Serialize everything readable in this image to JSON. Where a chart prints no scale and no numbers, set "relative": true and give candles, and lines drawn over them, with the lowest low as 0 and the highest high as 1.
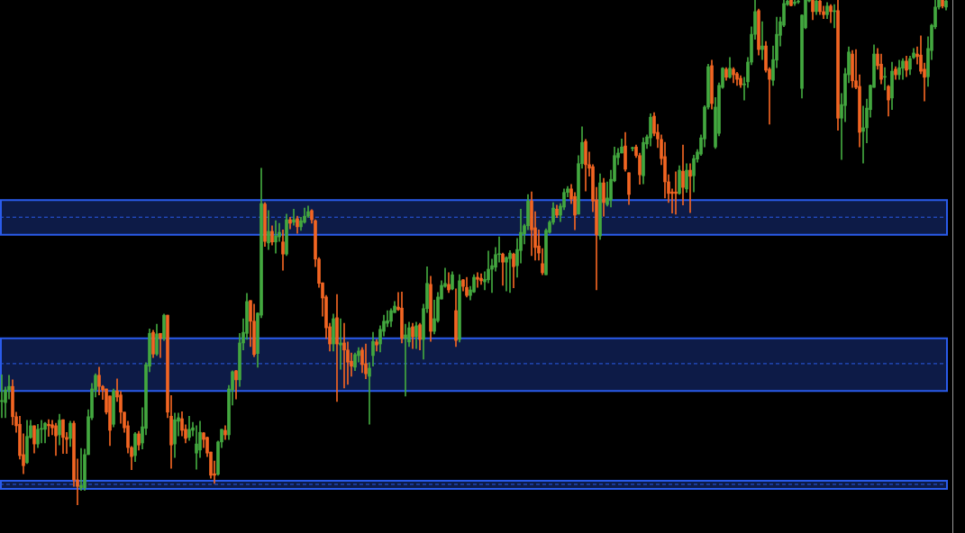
{
  "chart_data": {
    "type": "candlestick",
    "relative": true,
    "categories": [
      null,
      null,
      null,
      null,
      null,
      null,
      null,
      null,
      null,
      null,
      null,
      null,
      null,
      null,
      null,
      null,
      null,
      null,
      null,
      null,
      null,
      null,
      null,
      null,
      null,
      null,
      null,
      null,
      null,
      null,
      null,
      null,
      null,
      null,
      null,
      null,
      null,
      null,
      null,
      null,
      null,
      null,
      null,
      null,
      null,
      null,
      null,
      null,
      null,
      null,
      null,
      null,
      null,
      null,
      null,
      null,
      null,
      null,
      null,
      null,
      null,
      null,
      null,
      null,
      null,
      null,
      null,
      null,
      null,
      null,
      null,
      null,
      null,
      null,
      null,
      null,
      null,
      null,
      null,
      null,
      null,
      null,
      null,
      null,
      null,
      null,
      null,
      null,
      null,
      null,
      null,
      null,
      null,
      null,
      null,
      null,
      null,
      null,
      null,
      null,
      null,
      null,
      null,
      null,
      null,
      null,
      null,
      null,
      null,
      null,
      null,
      null,
      null,
      null,
      null,
      null,
      null,
      null,
      null,
      null,
      null,
      null,
      null,
      null,
      null,
      null,
      null,
      null,
      null,
      null,
      null,
      null,
      null,
      null,
      null,
      null,
      null,
      null,
      null,
      null,
      null,
      null,
      null,
      null,
      null,
      null,
      null,
      null,
      null,
      null,
      null,
      null,
      null,
      null,
      null,
      null,
      null,
      null,
      null,
      null,
      null,
      null,
      null,
      null,
      null,
      null,
      null,
      null,
      null,
      null,
      null,
      null,
      null,
      null,
      null,
      null,
      null,
      null,
      null,
      null,
      null,
      null,
      null,
      null,
      null,
      null,
      null,
      null,
      null,
      null,
      null,
      null,
      null,
      null,
      null,
      null,
      null,
      null,
      null,
      null,
      null,
      null,
      null,
      null,
      null,
      null,
      null,
      null,
      null,
      null,
      null,
      null,
      null,
      null,
      null,
      null,
      null,
      null,
      null,
      null,
      null,
      null,
      null,
      null,
      null,
      null,
      null,
      null,
      null,
      null,
      null,
      null,
      null,
      null,
      null,
      null,
      null,
      null,
      null,
      null,
      null,
      null,
      null,
      null,
      null,
      null,
      null,
      null,
      null,
      null,
      null,
      null,
      null,
      null,
      null,
      null,
      null,
      null,
      null,
      null,
      null,
      null,
      null
    ],
    "ohlc": [
      [
        0.205,
        0.258,
        0.173,
        0.207
      ],
      [
        0.203,
        0.234,
        0.173,
        0.228
      ],
      [
        0.228,
        0.257,
        0.21,
        0.235
      ],
      [
        0.235,
        0.248,
        0.159,
        0.175
      ],
      [
        0.175,
        0.184,
        0.144,
        0.157
      ],
      [
        0.16,
        0.176,
        0.091,
        0.098
      ],
      [
        0.1,
        0.141,
        0.062,
        0.078
      ],
      [
        0.084,
        0.168,
        0.082,
        0.136
      ],
      [
        0.134,
        0.168,
        0.132,
        0.157
      ],
      [
        0.157,
        0.157,
        0.103,
        0.121
      ],
      [
        0.121,
        0.16,
        0.114,
        0.15
      ],
      [
        0.15,
        0.168,
        0.123,
        0.15
      ],
      [
        0.15,
        0.164,
        0.123,
        0.162
      ],
      [
        0.16,
        0.169,
        0.136,
        0.157
      ],
      [
        0.159,
        0.168,
        0.139,
        0.153
      ],
      [
        0.157,
        0.162,
        0.098,
        0.137
      ],
      [
        0.139,
        0.18,
        0.119,
        0.168
      ],
      [
        0.169,
        0.169,
        0.102,
        0.134
      ],
      [
        0.134,
        0.144,
        0.102,
        0.13
      ],
      [
        0.132,
        0.166,
        0.116,
        0.162
      ],
      [
        0.162,
        0.166,
        0.037,
        0.05
      ],
      [
        0.05,
        0.091,
        0,
        0.037
      ],
      [
        0.034,
        0.112,
        0.029,
        0.039
      ],
      [
        0.034,
        0.111,
        0.029,
        0.1
      ],
      [
        0.1,
        0.189,
        0.1,
        0.175
      ],
      [
        0.173,
        0.241,
        0.169,
        0.23
      ],
      [
        0.228,
        0.26,
        0.214,
        0.257
      ],
      [
        0.257,
        0.273,
        0.218,
        0.235
      ],
      [
        0.235,
        0.237,
        0.209,
        0.228
      ],
      [
        0.23,
        0.23,
        0.18,
        0.184
      ],
      [
        0.216,
        0.216,
        0.118,
        0.148
      ],
      [
        0.16,
        0.23,
        0.155,
        0.226
      ],
      [
        0.226,
        0.25,
        0.205,
        0.214
      ],
      [
        0.218,
        0.225,
        0.162,
        0.184
      ],
      [
        0.184,
        0.184,
        0.144,
        0.153
      ],
      [
        0.157,
        0.166,
        0.103,
        0.114
      ],
      [
        0.114,
        0.116,
        0.07,
        0.096
      ],
      [
        0.098,
        0.144,
        0.086,
        0.141
      ],
      [
        0.141,
        0.146,
        0.109,
        0.119
      ],
      [
        0.123,
        0.193,
        0.111,
        0.155
      ],
      [
        0.152,
        0.282,
        0.139,
        0.278
      ],
      [
        0.275,
        0.349,
        0.264,
        0.34
      ],
      [
        0.342,
        0.346,
        0.292,
        0.299
      ],
      [
        0.299,
        0.358,
        0.296,
        0.339
      ],
      [
        0.34,
        0.34,
        0.292,
        0.33
      ],
      [
        0.33,
        0.378,
        0.326,
        0.376
      ],
      [
        0.376,
        0.376,
        0.173,
        0.184
      ],
      [
        0.176,
        0.217,
        0.073,
        0.119
      ],
      [
        0.121,
        0.182,
        0.094,
        0.169
      ],
      [
        0.166,
        0.182,
        0.137,
        0.173
      ],
      [
        0.171,
        0.185,
        0.137,
        0.148
      ],
      [
        0.15,
        0.159,
        0.123,
        0.132
      ],
      [
        0.134,
        0.176,
        0.128,
        0.15
      ],
      [
        0.148,
        0.164,
        0.137,
        0.153
      ],
      [
        0.103,
        0.157,
        0.071,
        0.121
      ],
      [
        0.109,
        0.166,
        0.094,
        0.144
      ],
      [
        0.143,
        0.144,
        0.114,
        0.13
      ],
      [
        0.134,
        0.135,
        0.096,
        0.103
      ],
      [
        0.105,
        0.105,
        0.053,
        0.059
      ],
      [
        0.062,
        0.087,
        0.043,
        0.059
      ],
      [
        0.061,
        0.127,
        0.059,
        0.125
      ],
      [
        0.125,
        0.15,
        0.114,
        0.15
      ],
      [
        0.148,
        0.157,
        0.13,
        0.139
      ],
      [
        0.139,
        0.237,
        0.13,
        0.23
      ],
      [
        0.228,
        0.266,
        0.198,
        0.264
      ],
      [
        0.266,
        0.267,
        0.21,
        0.248
      ],
      [
        0.248,
        0.34,
        0.235,
        0.321
      ],
      [
        0.321,
        0.369,
        0.307,
        0.342
      ],
      [
        0.34,
        0.419,
        0.328,
        0.403
      ],
      [
        0.405,
        0.405,
        0.314,
        0.364
      ],
      [
        0.364,
        0.398,
        0.294,
        0.298
      ],
      [
        0.3,
        0.381,
        0.273,
        0.38
      ],
      [
        0.376,
        0.667,
        0.371,
        0.597
      ],
      [
        0.596,
        0.599,
        0.512,
        0.522
      ],
      [
        0.519,
        0.583,
        0.506,
        0.542
      ],
      [
        0.542,
        0.553,
        0.515,
        0.521
      ],
      [
        0.521,
        0.563,
        0.499,
        0.533
      ],
      [
        0.531,
        0.558,
        0.522,
        0.54
      ],
      [
        0.521,
        0.545,
        0.465,
        0.497
      ],
      [
        0.497,
        0.576,
        0.494,
        0.565
      ],
      [
        0.565,
        0.57,
        0.547,
        0.558
      ],
      [
        0.56,
        0.586,
        0.554,
        0.565
      ],
      [
        0.567,
        0.572,
        0.538,
        0.551
      ],
      [
        0.551,
        0.57,
        0.544,
        0.563
      ],
      [
        0.56,
        0.588,
        0.558,
        0.572
      ],
      [
        0.572,
        0.592,
        0.569,
        0.581
      ],
      [
        0.583,
        0.585,
        0.558,
        0.565
      ],
      [
        0.563,
        0.565,
        0.472,
        0.487
      ],
      [
        0.487,
        0.49,
        0.431,
        0.439
      ],
      [
        0.44,
        0.44,
        0.374,
        0.41
      ],
      [
        0.412,
        0.415,
        0.33,
        0.351
      ],
      [
        0.353,
        0.36,
        0.305,
        0.319
      ],
      [
        0.319,
        0.378,
        0.305,
        0.369
      ],
      [
        0.371,
        0.417,
        0.205,
        0.319
      ],
      [
        0.317,
        0.369,
        0.269,
        0.321
      ],
      [
        0.321,
        0.36,
        0.232,
        0.307
      ],
      [
        0.307,
        0.323,
        0.239,
        0.283
      ],
      [
        0.285,
        0.301,
        0.255,
        0.275
      ],
      [
        0.273,
        0.301,
        0.266,
        0.298
      ],
      [
        0.296,
        0.312,
        0.283,
        0.305
      ],
      [
        0.307,
        0.312,
        0.262,
        0.278
      ],
      [
        0.28,
        0.319,
        0.25,
        0.26
      ],
      [
        0.255,
        0.282,
        0.16,
        0.271
      ],
      [
        0.296,
        0.342,
        0.275,
        0.324
      ],
      [
        0.323,
        0.328,
        0.305,
        0.317
      ],
      [
        0.319,
        0.355,
        0.303,
        0.348
      ],
      [
        0.344,
        0.376,
        0.335,
        0.364
      ],
      [
        0.36,
        0.385,
        0.353,
        0.365
      ],
      [
        0.364,
        0.389,
        0.353,
        0.385
      ],
      [
        0.381,
        0.403,
        0.381,
        0.394
      ],
      [
        0.392,
        0.421,
        0.385,
        0.387
      ],
      [
        0.39,
        0.422,
        0.321,
        0.33
      ],
      [
        0.33,
        0.358,
        0.216,
        0.337
      ],
      [
        0.323,
        0.362,
        0.314,
        0.351
      ],
      [
        0.353,
        0.36,
        0.31,
        0.333
      ],
      [
        0.333,
        0.362,
        0.31,
        0.355
      ],
      [
        0.357,
        0.36,
        0.307,
        0.328
      ],
      [
        0.328,
        0.398,
        0.289,
        0.389
      ],
      [
        0.389,
        0.472,
        0.381,
        0.439
      ],
      [
        0.437,
        0.453,
        0.324,
        0.344
      ],
      [
        0.344,
        0.406,
        0.339,
        0.369
      ],
      [
        0.365,
        0.421,
        0.362,
        0.412
      ],
      [
        0.408,
        0.444,
        0.408,
        0.435
      ],
      [
        0.433,
        0.469,
        0.431,
        0.439
      ],
      [
        0.437,
        0.46,
        0.421,
        0.426
      ],
      [
        0.428,
        0.462,
        0.426,
        0.456
      ],
      [
        0.385,
        0.428,
        0.314,
        0.326
      ],
      [
        0.328,
        0.456,
        0.323,
        0.444
      ],
      [
        0.446,
        0.447,
        0.424,
        0.433
      ],
      [
        0.431,
        0.451,
        0.412,
        0.415
      ],
      [
        0.415,
        0.433,
        0.406,
        0.426
      ],
      [
        0.422,
        0.456,
        0.421,
        0.451
      ],
      [
        0.451,
        0.46,
        0.431,
        0.447
      ],
      [
        0.449,
        0.458,
        0.437,
        0.444
      ],
      [
        0.442,
        0.462,
        0.426,
        0.447
      ],
      [
        0.446,
        0.503,
        0.44,
        0.467
      ],
      [
        0.467,
        0.487,
        0.421,
        0.474
      ],
      [
        0.471,
        0.51,
        0.463,
        0.496
      ],
      [
        0.496,
        0.531,
        0.481,
        0.497
      ],
      [
        0.497,
        0.499,
        0.435,
        0.481
      ],
      [
        0.481,
        0.492,
        0.424,
        0.49
      ],
      [
        0.488,
        0.504,
        0.421,
        0.499
      ],
      [
        0.497,
        0.499,
        0.43,
        0.472
      ],
      [
        0.474,
        0.528,
        0.451,
        0.506
      ],
      [
        0.504,
        0.586,
        0.479,
        0.54
      ],
      [
        0.537,
        0.556,
        0.517,
        0.553
      ],
      [
        0.553,
        0.615,
        0.545,
        0.602
      ],
      [
        0.602,
        0.62,
        0.494,
        0.545
      ],
      [
        0.549,
        0.581,
        0.485,
        0.51
      ],
      [
        0.513,
        0.545,
        0.485,
        0.499
      ],
      [
        0.478,
        0.508,
        0.456,
        0.46
      ],
      [
        0.456,
        0.547,
        0.456,
        0.544
      ],
      [
        0.54,
        0.563,
        0.538,
        0.56
      ],
      [
        0.56,
        0.599,
        0.556,
        0.588
      ],
      [
        0.586,
        0.594,
        0.569,
        0.574
      ],
      [
        0.574,
        0.597,
        0.561,
        0.592
      ],
      [
        0.59,
        0.626,
        0.585,
        0.619
      ],
      [
        0.619,
        0.631,
        0.61,
        0.626
      ],
      [
        0.626,
        0.635,
        0.597,
        0.606
      ],
      [
        0.611,
        0.619,
        0.545,
        0.574
      ],
      [
        0.576,
        0.692,
        0.576,
        0.676
      ],
      [
        0.676,
        0.749,
        0.667,
        0.718
      ],
      [
        0.72,
        0.724,
        0.622,
        0.674
      ],
      [
        0.674,
        0.699,
        0.651,
        0.667
      ],
      [
        0.67,
        0.674,
        0.581,
        0.602
      ],
      [
        0.604,
        0.629,
        0.426,
        0.535
      ],
      [
        0.533,
        0.656,
        0.526,
        0.638
      ],
      [
        0.638,
        0.647,
        0.572,
        0.599
      ],
      [
        0.595,
        0.64,
        0.592,
        0.608
      ],
      [
        0.604,
        0.663,
        0.59,
        0.645
      ],
      [
        0.642,
        0.709,
        0.64,
        0.692
      ],
      [
        0.688,
        0.706,
        0.674,
        0.697
      ],
      [
        0.697,
        0.725,
        0.697,
        0.709
      ],
      [
        0.711,
        0.738,
        0.661,
        0.665
      ],
      [
        0.658,
        0.658,
        0.595,
        0.615
      ],
      [
        0.706,
        0.709,
        0.701,
        0.706
      ],
      [
        0.709,
        0.713,
        0.688,
        0.692
      ],
      [
        0.692,
        0.697,
        0.635,
        0.654
      ],
      [
        0.652,
        0.727,
        0.636,
        0.718
      ],
      [
        0.715,
        0.733,
        0.706,
        0.729
      ],
      [
        0.727,
        0.775,
        0.711,
        0.768
      ],
      [
        0.77,
        0.777,
        0.731,
        0.736
      ],
      [
        0.738,
        0.754,
        0.708,
        0.725
      ],
      [
        0.724,
        0.733,
        0.674,
        0.686
      ],
      [
        0.69,
        0.718,
        0.608,
        0.64
      ],
      [
        0.64,
        0.654,
        0.599,
        0.617
      ],
      [
        0.62,
        0.626,
        0.578,
        0.617
      ],
      [
        0.62,
        0.66,
        0.576,
        0.617
      ],
      [
        0.617,
        0.672,
        0.615,
        0.663
      ],
      [
        0.661,
        0.713,
        0.594,
        0.629
      ],
      [
        0.626,
        0.676,
        0.619,
        0.663
      ],
      [
        0.663,
        0.676,
        0.579,
        0.651
      ],
      [
        0.652,
        0.693,
        0.62,
        0.686
      ],
      [
        0.685,
        0.704,
        0.679,
        0.699
      ],
      [
        0.695,
        0.733,
        0.692,
        0.727
      ],
      [
        0.725,
        0.791,
        0.709,
        0.788
      ],
      [
        0.788,
        0.873,
        0.784,
        0.868
      ],
      [
        0.87,
        0.881,
        0.784,
        0.795
      ],
      [
        0.709,
        0.807,
        0.706,
        0.788
      ],
      [
        0.736,
        0.836,
        0.731,
        0.831
      ],
      [
        0.827,
        0.866,
        0.825,
        0.865
      ],
      [
        0.863,
        0.866,
        0.841,
        0.847
      ],
      [
        0.847,
        0.886,
        0.845,
        0.865
      ],
      [
        0.863,
        0.866,
        0.836,
        0.852
      ],
      [
        0.854,
        0.857,
        0.831,
        0.843
      ],
      [
        0.845,
        0.85,
        0.827,
        0.832
      ],
      [
        0.832,
        0.847,
        0.802,
        0.834
      ],
      [
        0.838,
        0.886,
        0.827,
        0.877
      ],
      [
        0.877,
        0.947,
        0.872,
        0.932
      ],
      [
        0.932,
        1,
        0.922,
        0.977
      ],
      [
        0.979,
        0.982,
        0.891,
        0.902
      ],
      [
        0.902,
        0.957,
        0.882,
        0.909
      ],
      [
        0.909,
        0.918,
        0.857,
        0.861
      ],
      [
        0.863,
        0.866,
        0.754,
        0.843
      ],
      [
        0.841,
        0.909,
        0.831,
        0.882
      ],
      [
        0.881,
        0.966,
        0.866,
        0.932
      ],
      [
        0.93,
        0.966,
        0.909,
        0.957
      ],
      [
        0.95,
        1,
        0.947,
        0.993
      ],
      [
        0.991,
        1,
        0.989,
        0.998
      ],
      [
        1,
        1,
        0.988,
        0.989
      ],
      [
        0.993,
        1,
        0.989,
        0.996
      ],
      [
        0.996,
        1,
        0.993,
        0.998
      ],
      [
        0.825,
        0.971,
        0.806,
        0.97
      ],
      [
        0.945,
        1,
        0.943,
        1
      ],
      [
        0.998,
        1,
        0.996,
        1
      ],
      [
        1,
        1,
        0.961,
        0.977
      ],
      [
        0.977,
        1,
        0.971,
        0.998
      ],
      [
        0.998,
        1,
        0.971,
        0.977
      ],
      [
        0.977,
        0.988,
        0.963,
        0.971
      ],
      [
        0.971,
        0.995,
        0.963,
        0.988
      ],
      [
        0.988,
        0.991,
        0.955,
        0.977
      ],
      [
        0.977,
        0.991,
        0.945,
        0.977
      ],
      [
        0.979,
        1,
        0.742,
        0.766
      ],
      [
        0.766,
        0.815,
        0.684,
        0.793
      ],
      [
        0.791,
        0.865,
        0.759,
        0.854
      ],
      [
        0.852,
        0.907,
        0.836,
        0.897
      ],
      [
        0.893,
        0.9,
        0.827,
        0.84
      ],
      [
        0.84,
        0.902,
        0.824,
        0.827
      ],
      [
        0.829,
        0.852,
        0.709,
        0.738
      ],
      [
        0.74,
        0.79,
        0.677,
        0.747
      ],
      [
        0.747,
        0.804,
        0.717,
        0.786
      ],
      [
        0.783,
        0.832,
        0.768,
        0.831
      ],
      [
        0.827,
        0.911,
        0.827,
        0.893
      ],
      [
        0.893,
        0.904,
        0.863,
        0.87
      ],
      [
        0.873,
        0.893,
        0.834,
        0.843
      ],
      [
        0.847,
        0.866,
        0.822,
        0.848
      ],
      [
        0.829,
        0.831,
        0.77,
        0.802
      ],
      [
        0.806,
        0.877,
        0.783,
        0.859
      ],
      [
        0.863,
        0.868,
        0.843,
        0.852
      ],
      [
        0.852,
        0.881,
        0.843,
        0.866
      ],
      [
        0.865,
        0.884,
        0.843,
        0.879
      ],
      [
        0.879,
        0.889,
        0.848,
        0.861
      ],
      [
        0.863,
        0.889,
        0.852,
        0.884
      ],
      [
        0.886,
        0.904,
        0.884,
        0.895
      ],
      [
        0.893,
        0.907,
        0.873,
        0.888
      ],
      [
        0.891,
        0.929,
        0.854,
        0.859
      ],
      [
        0.863,
        0.875,
        0.8,
        0.847
      ],
      [
        0.848,
        0.927,
        0.829,
        0.904
      ],
      [
        0.9,
        0.952,
        0.882,
        0.95
      ],
      [
        0.947,
        1,
        0.943,
        0.986
      ],
      [
        0.986,
        1,
        0.982,
        1
      ],
      [
        1,
        1,
        0.984,
        0.988
      ],
      [
        0.986,
        1,
        0.98,
        0.998
      ]
    ],
    "colors": [
      "#43a83f",
      "#43a83f",
      "#43a83f",
      "#f26522",
      "#f26522",
      "#f26522",
      "#f26522",
      "#43a83f",
      "#43a83f",
      "#f26522",
      "#43a83f",
      "#43a83f",
      "#43a83f",
      "#f26522",
      "#f26522",
      "#f26522",
      "#43a83f",
      "#f26522",
      "#f26522",
      "#43a83f",
      "#f26522",
      "#f26522",
      "#43a83f",
      "#43a83f",
      "#43a83f",
      "#43a83f",
      "#43a83f",
      "#f26522",
      "#f26522",
      "#f26522",
      "#f26522",
      "#43a83f",
      "#f26522",
      "#f26522",
      "#f26522",
      "#f26522",
      "#f26522",
      "#43a83f",
      "#f26522",
      "#43a83f",
      "#43a83f",
      "#43a83f",
      "#f26522",
      "#43a83f",
      "#f26522",
      "#43a83f",
      "#f26522",
      "#f26522",
      "#43a83f",
      "#43a83f",
      "#f26522",
      "#f26522",
      "#43a83f",
      "#43a83f",
      "#43a83f",
      "#43a83f",
      "#f26522",
      "#f26522",
      "#f26522",
      "#f26522",
      "#43a83f",
      "#43a83f",
      "#f26522",
      "#43a83f",
      "#43a83f",
      "#f26522",
      "#43a83f",
      "#43a83f",
      "#43a83f",
      "#f26522",
      "#f26522",
      "#43a83f",
      "#43a83f",
      "#f26522",
      "#43a83f",
      "#f26522",
      "#43a83f",
      "#43a83f",
      "#f26522",
      "#43a83f",
      "#f26522",
      "#43a83f",
      "#f26522",
      "#43a83f",
      "#43a83f",
      "#43a83f",
      "#f26522",
      "#f26522",
      "#f26522",
      "#f26522",
      "#f26522",
      "#f26522",
      "#43a83f",
      "#f26522",
      "#43a83f",
      "#f26522",
      "#f26522",
      "#f26522",
      "#43a83f",
      "#43a83f",
      "#f26522",
      "#f26522",
      "#43a83f",
      "#43a83f",
      "#f26522",
      "#43a83f",
      "#43a83f",
      "#43a83f",
      "#43a83f",
      "#43a83f",
      "#f26522",
      "#f26522",
      "#43a83f",
      "#43a83f",
      "#f26522",
      "#43a83f",
      "#f26522",
      "#43a83f",
      "#43a83f",
      "#f26522",
      "#43a83f",
      "#43a83f",
      "#43a83f",
      "#43a83f",
      "#f26522",
      "#43a83f",
      "#f26522",
      "#43a83f",
      "#f26522",
      "#f26522",
      "#43a83f",
      "#43a83f",
      "#f26522",
      "#f26522",
      "#43a83f",
      "#43a83f",
      "#43a83f",
      "#43a83f",
      "#43a83f",
      "#f26522",
      "#43a83f",
      "#43a83f",
      "#f26522",
      "#43a83f",
      "#43a83f",
      "#43a83f",
      "#43a83f",
      "#f26522",
      "#f26522",
      "#f26522",
      "#f26522",
      "#43a83f",
      "#43a83f",
      "#43a83f",
      "#f26522",
      "#43a83f",
      "#43a83f",
      "#43a83f",
      "#f26522",
      "#f26522",
      "#43a83f",
      "#43a83f",
      "#f26522",
      "#f26522",
      "#f26522",
      "#f26522",
      "#43a83f",
      "#f26522",
      "#43a83f",
      "#43a83f",
      "#43a83f",
      "#43a83f",
      "#43a83f",
      "#f26522",
      "#f26522",
      "#43a83f",
      "#f26522",
      "#f26522",
      "#43a83f",
      "#43a83f",
      "#43a83f",
      "#f26522",
      "#f26522",
      "#f26522",
      "#f26522",
      "#f26522",
      "#f26522",
      "#f26522",
      "#43a83f",
      "#f26522",
      "#43a83f",
      "#f26522",
      "#43a83f",
      "#43a83f",
      "#43a83f",
      "#43a83f",
      "#43a83f",
      "#f26522",
      "#43a83f",
      "#43a83f",
      "#43a83f",
      "#f26522",
      "#43a83f",
      "#f26522",
      "#f26522",
      "#f26522",
      "#43a83f",
      "#43a83f",
      "#43a83f",
      "#43a83f",
      "#f26522",
      "#43a83f",
      "#f26522",
      "#f26522",
      "#43a83f",
      "#43a83f",
      "#43a83f",
      "#43a83f",
      "#43a83f",
      "#f26522",
      "#43a83f",
      "#43a83f",
      "#43a83f",
      "#43a83f",
      "#43a83f",
      "#f26522",
      "#43a83f",
      "#f26522",
      "#f26522",
      "#43a83f",
      "#f26522",
      "#43a83f",
      "#f26522",
      "#43a83f",
      "#43a83f",
      "#43a83f",
      "#f26522",
      "#f26522",
      "#f26522",
      "#43a83f",
      "#43a83f",
      "#43a83f",
      "#43a83f",
      "#f26522",
      "#f26522",
      "#43a83f",
      "#f26522",
      "#43a83f",
      "#f26522",
      "#43a83f",
      "#43a83f",
      "#f26522",
      "#43a83f",
      "#43a83f",
      "#f26522",
      "#f26522",
      "#f26522",
      "#43a83f",
      "#43a83f",
      "#43a83f",
      "#43a83f",
      "#f26522",
      "#43a83f"
    ],
    "bands": [
      {
        "axis": "y",
        "from": 0.535,
        "to": 0.604,
        "color": "#2a5bea"
      },
      {
        "axis": "y",
        "from": 0.226,
        "to": 0.33,
        "color": "#2a5bea"
      },
      {
        "axis": "y",
        "from": 0.032,
        "to": 0.048,
        "color": "#2a5bea"
      }
    ],
    "ref_lines": [
      {
        "axis": "y",
        "value": 0.57,
        "color": "#2a5bea",
        "line_style": "dashed"
      },
      {
        "axis": "y",
        "value": 0.28,
        "color": "#2a5bea",
        "line_style": "dashed"
      },
      {
        "axis": "y",
        "value": 0.041,
        "color": "#2a5bea",
        "line_style": "dashed"
      }
    ]
  }
}
